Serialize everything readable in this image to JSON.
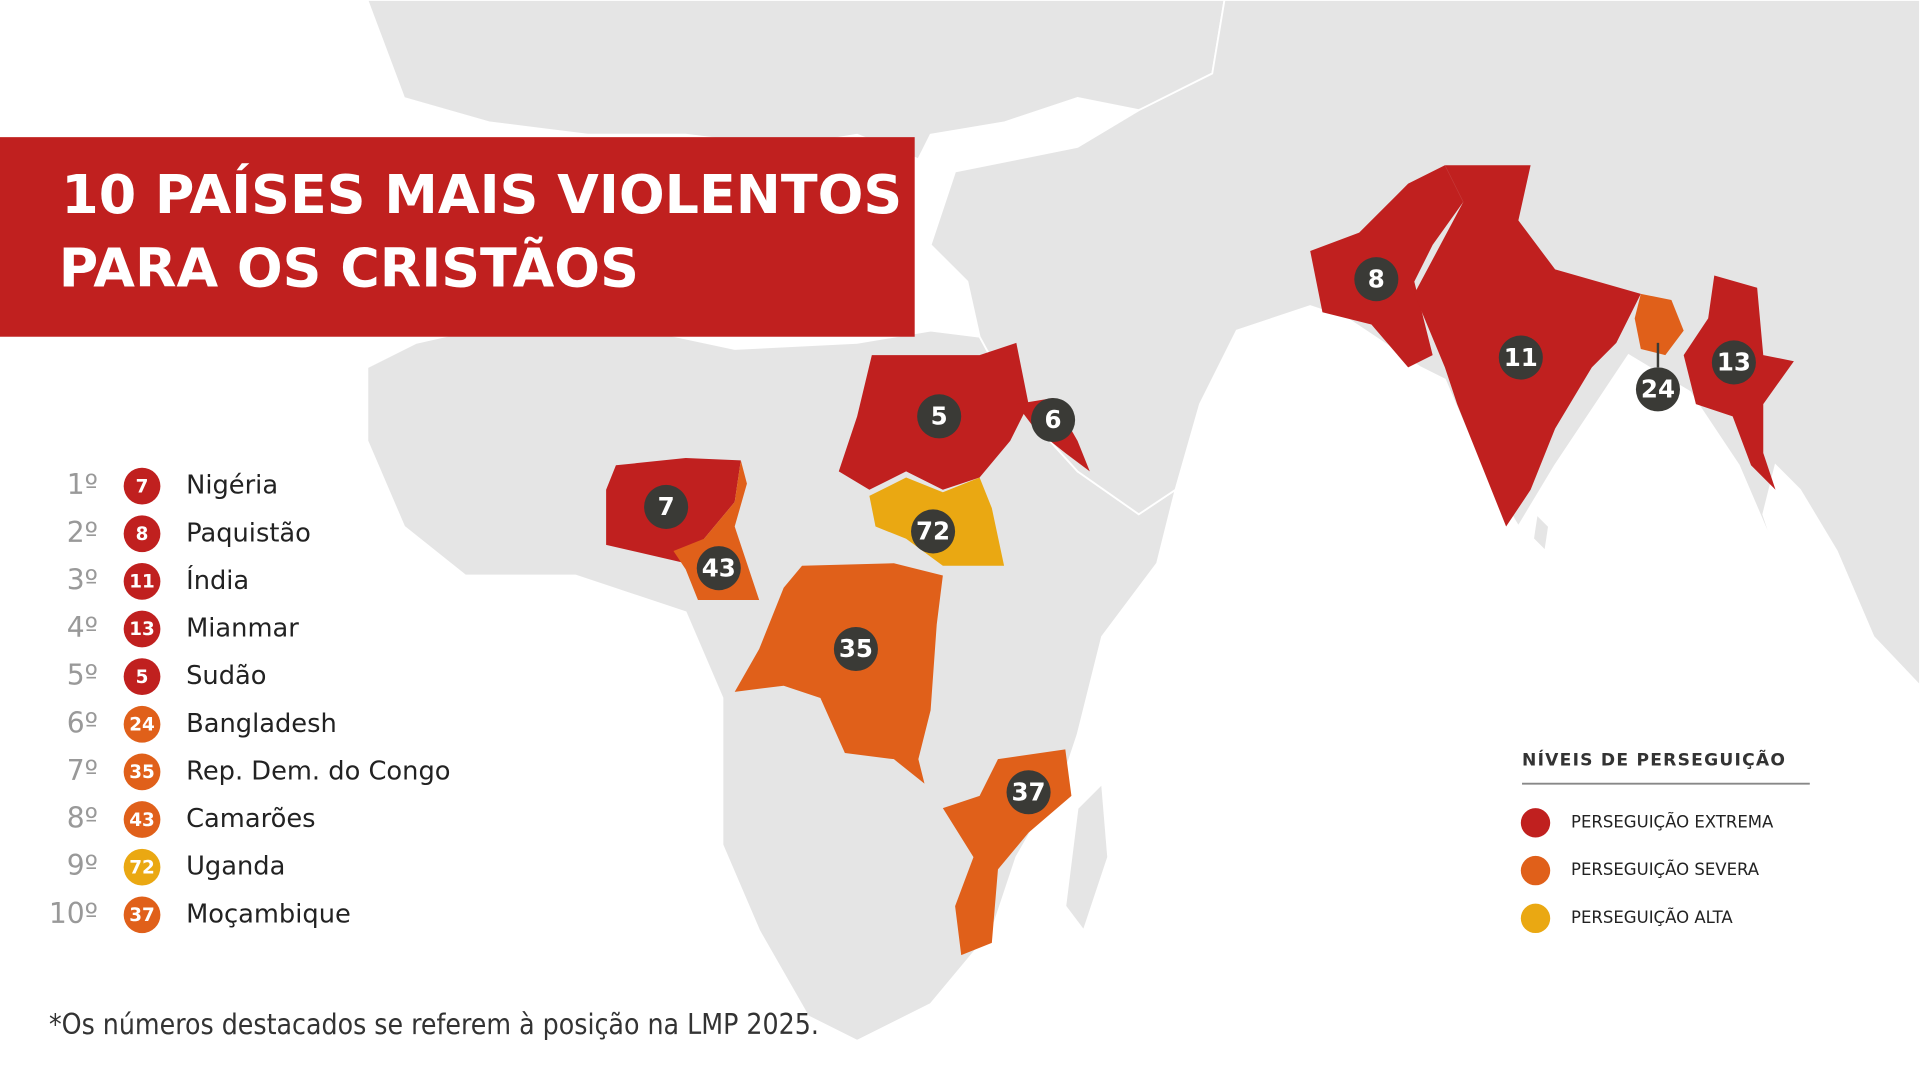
{
  "header": {
    "title_lines": [
      "10 PAÍSES MAIS VIOLENTOS",
      "PARA OS CRISTÃOS"
    ]
  },
  "ranking": [
    {
      "rank": "1º",
      "score": 7,
      "country": "Nigéria",
      "color": "#c0201f"
    },
    {
      "rank": "2º",
      "score": 8,
      "country": "Paquistão",
      "color": "#c0201f"
    },
    {
      "rank": "3º",
      "score": 11,
      "country": "Índia",
      "color": "#c0201f"
    },
    {
      "rank": "4º",
      "score": 13,
      "country": "Mianmar",
      "color": "#c0201f"
    },
    {
      "rank": "5º",
      "score": 5,
      "country": "Sudão",
      "color": "#c0201f"
    },
    {
      "rank": "6º",
      "score": 24,
      "country": "Bangladesh",
      "color": "#e0601a"
    },
    {
      "rank": "7º",
      "score": 35,
      "country": "Rep. Dem. do Congo",
      "color": "#e0601a"
    },
    {
      "rank": "8º",
      "score": 43,
      "country": "Camarões",
      "color": "#e0601a"
    },
    {
      "rank": "9º",
      "score": 72,
      "country": "Uganda",
      "color": "#eaa812"
    },
    {
      "rank": "10º",
      "score": 37,
      "country": "Moçambique",
      "color": "#e0601a"
    }
  ],
  "extra_markers": [
    {
      "score": 6,
      "color": "#c0201f"
    }
  ],
  "legend": {
    "title": "NÍVEIS DE PERSEGUIÇÃO",
    "entries": [
      {
        "label": "PERSEGUIÇÃO EXTREMA",
        "color": "#c0201f"
      },
      {
        "label": "PERSEGUIÇÃO SEVERA",
        "color": "#e0601a"
      },
      {
        "label": "PERSEGUIÇÃO ALTA",
        "color": "#eaa812"
      }
    ]
  },
  "footnote": "*Os números destacados se referem à posição na LMP 2025."
}
